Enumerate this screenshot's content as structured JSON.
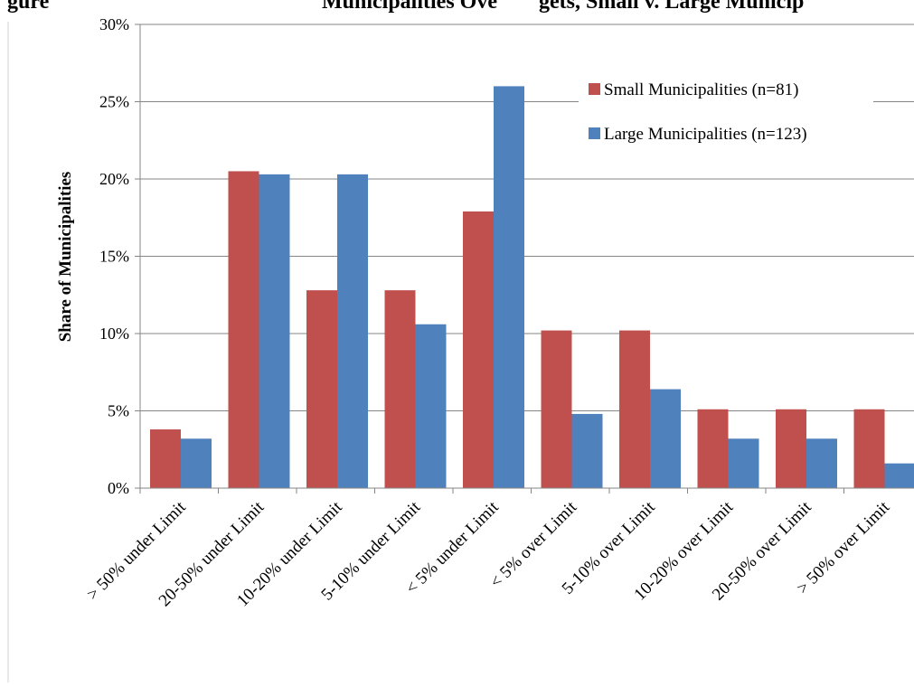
{
  "chart_data": {
    "type": "bar",
    "title": "",
    "title_fragment": "gure",
    "title_fragment_2": "Municipalities Ove",
    "title_fragment_3": "gets, Small v. Large Municip",
    "xlabel": "",
    "ylabel": "Share of Municipalities",
    "ylim": [
      0,
      30
    ],
    "yticks": [
      0,
      5,
      10,
      15,
      20,
      25,
      30
    ],
    "ytick_labels": [
      "0%",
      "5%",
      "10%",
      "15%",
      "20%",
      "25%",
      "30%"
    ],
    "grid": true,
    "legend_position": "top-right",
    "categories": [
      "> 50% under Limit",
      "20-50% under Limit",
      "10-20% under Limit",
      "5-10% under Limit",
      "< 5% under Limit",
      "< 5% over Limit",
      "5-10% over Limit",
      "10-20% over Limit",
      "20-50% over Limit",
      "> 50% over Limit"
    ],
    "series": [
      {
        "name": "Small Municipalities (n=81)",
        "color": "#C0504D",
        "values": [
          3.8,
          20.5,
          12.8,
          12.8,
          17.9,
          10.2,
          10.2,
          5.1,
          5.1,
          5.1
        ]
      },
      {
        "name": "Large Municipalities (n=123)",
        "color": "#4F81BD",
        "values": [
          3.2,
          20.3,
          20.3,
          10.6,
          26.0,
          4.8,
          6.4,
          3.2,
          3.2,
          1.6
        ]
      }
    ]
  }
}
